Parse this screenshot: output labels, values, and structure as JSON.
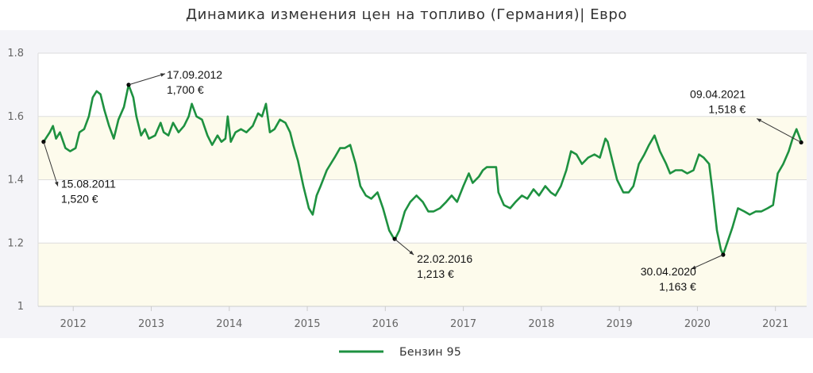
{
  "chart_data": {
    "type": "line",
    "title": "Динамика изменения цен на топливо (Германия)| Евро",
    "xlabel": "",
    "ylabel": "",
    "ylim": [
      1.0,
      1.8
    ],
    "yticks": [
      "1",
      "1.2",
      "1.4",
      "1.6",
      "1.8"
    ],
    "xlim": [
      2011.55,
      2021.4
    ],
    "xtick_labels": [
      "2012",
      "2013",
      "2014",
      "2015",
      "2016",
      "2017",
      "2018",
      "2019",
      "2020",
      "2021"
    ],
    "colors": {
      "line": "#1e9140",
      "band": "#fdfbec",
      "grid": "#dddddd",
      "page_bg": "#f4f4f8"
    },
    "series": [
      {
        "name": "Бензин 95",
        "color": "#1e9140",
        "points": [
          [
            2011.62,
            1.52
          ],
          [
            2011.7,
            1.55
          ],
          [
            2011.74,
            1.57
          ],
          [
            2011.78,
            1.53
          ],
          [
            2011.83,
            1.55
          ],
          [
            2011.9,
            1.5
          ],
          [
            2011.96,
            1.49
          ],
          [
            2012.03,
            1.5
          ],
          [
            2012.08,
            1.55
          ],
          [
            2012.14,
            1.56
          ],
          [
            2012.2,
            1.6
          ],
          [
            2012.25,
            1.66
          ],
          [
            2012.3,
            1.68
          ],
          [
            2012.35,
            1.67
          ],
          [
            2012.4,
            1.62
          ],
          [
            2012.46,
            1.57
          ],
          [
            2012.52,
            1.53
          ],
          [
            2012.58,
            1.59
          ],
          [
            2012.65,
            1.63
          ],
          [
            2012.71,
            1.7
          ],
          [
            2012.77,
            1.66
          ],
          [
            2012.81,
            1.6
          ],
          [
            2012.87,
            1.54
          ],
          [
            2012.92,
            1.56
          ],
          [
            2012.97,
            1.53
          ],
          [
            2013.05,
            1.54
          ],
          [
            2013.12,
            1.58
          ],
          [
            2013.16,
            1.55
          ],
          [
            2013.22,
            1.54
          ],
          [
            2013.28,
            1.58
          ],
          [
            2013.35,
            1.55
          ],
          [
            2013.42,
            1.57
          ],
          [
            2013.48,
            1.6
          ],
          [
            2013.52,
            1.64
          ],
          [
            2013.58,
            1.6
          ],
          [
            2013.65,
            1.59
          ],
          [
            2013.72,
            1.54
          ],
          [
            2013.78,
            1.51
          ],
          [
            2013.85,
            1.54
          ],
          [
            2013.9,
            1.52
          ],
          [
            2013.95,
            1.53
          ],
          [
            2013.98,
            1.6
          ],
          [
            2014.02,
            1.52
          ],
          [
            2014.08,
            1.55
          ],
          [
            2014.15,
            1.56
          ],
          [
            2014.22,
            1.55
          ],
          [
            2014.3,
            1.57
          ],
          [
            2014.37,
            1.61
          ],
          [
            2014.42,
            1.6
          ],
          [
            2014.47,
            1.64
          ],
          [
            2014.52,
            1.55
          ],
          [
            2014.58,
            1.56
          ],
          [
            2014.65,
            1.59
          ],
          [
            2014.72,
            1.58
          ],
          [
            2014.78,
            1.55
          ],
          [
            2014.82,
            1.51
          ],
          [
            2014.88,
            1.46
          ],
          [
            2014.95,
            1.38
          ],
          [
            2015.02,
            1.31
          ],
          [
            2015.07,
            1.29
          ],
          [
            2015.12,
            1.35
          ],
          [
            2015.17,
            1.38
          ],
          [
            2015.25,
            1.43
          ],
          [
            2015.35,
            1.47
          ],
          [
            2015.42,
            1.5
          ],
          [
            2015.48,
            1.5
          ],
          [
            2015.55,
            1.51
          ],
          [
            2015.62,
            1.45
          ],
          [
            2015.68,
            1.38
          ],
          [
            2015.75,
            1.35
          ],
          [
            2015.82,
            1.34
          ],
          [
            2015.9,
            1.36
          ],
          [
            2015.97,
            1.31
          ],
          [
            2016.05,
            1.24
          ],
          [
            2016.12,
            1.21
          ],
          [
            2016.18,
            1.24
          ],
          [
            2016.25,
            1.3
          ],
          [
            2016.32,
            1.33
          ],
          [
            2016.4,
            1.35
          ],
          [
            2016.48,
            1.33
          ],
          [
            2016.55,
            1.3
          ],
          [
            2016.62,
            1.3
          ],
          [
            2016.7,
            1.31
          ],
          [
            2016.78,
            1.33
          ],
          [
            2016.85,
            1.35
          ],
          [
            2016.92,
            1.33
          ],
          [
            2017.0,
            1.38
          ],
          [
            2017.07,
            1.42
          ],
          [
            2017.12,
            1.39
          ],
          [
            2017.2,
            1.41
          ],
          [
            2017.25,
            1.43
          ],
          [
            2017.3,
            1.44
          ],
          [
            2017.42,
            1.44
          ],
          [
            2017.45,
            1.36
          ],
          [
            2017.52,
            1.32
          ],
          [
            2017.6,
            1.31
          ],
          [
            2017.67,
            1.33
          ],
          [
            2017.75,
            1.35
          ],
          [
            2017.82,
            1.34
          ],
          [
            2017.9,
            1.37
          ],
          [
            2017.97,
            1.35
          ],
          [
            2018.05,
            1.38
          ],
          [
            2018.12,
            1.36
          ],
          [
            2018.18,
            1.35
          ],
          [
            2018.25,
            1.38
          ],
          [
            2018.32,
            1.43
          ],
          [
            2018.38,
            1.49
          ],
          [
            2018.45,
            1.48
          ],
          [
            2018.52,
            1.45
          ],
          [
            2018.6,
            1.47
          ],
          [
            2018.68,
            1.48
          ],
          [
            2018.75,
            1.47
          ],
          [
            2018.82,
            1.53
          ],
          [
            2018.85,
            1.52
          ],
          [
            2018.9,
            1.47
          ],
          [
            2018.97,
            1.4
          ],
          [
            2019.05,
            1.36
          ],
          [
            2019.12,
            1.36
          ],
          [
            2019.18,
            1.38
          ],
          [
            2019.25,
            1.45
          ],
          [
            2019.32,
            1.48
          ],
          [
            2019.38,
            1.51
          ],
          [
            2019.45,
            1.54
          ],
          [
            2019.52,
            1.49
          ],
          [
            2019.6,
            1.45
          ],
          [
            2019.65,
            1.42
          ],
          [
            2019.72,
            1.43
          ],
          [
            2019.8,
            1.43
          ],
          [
            2019.87,
            1.42
          ],
          [
            2019.95,
            1.43
          ],
          [
            2020.02,
            1.48
          ],
          [
            2020.08,
            1.47
          ],
          [
            2020.15,
            1.45
          ],
          [
            2020.2,
            1.35
          ],
          [
            2020.25,
            1.24
          ],
          [
            2020.3,
            1.18
          ],
          [
            2020.33,
            1.163
          ],
          [
            2020.38,
            1.2
          ],
          [
            2020.45,
            1.25
          ],
          [
            2020.52,
            1.31
          ],
          [
            2020.6,
            1.3
          ],
          [
            2020.67,
            1.29
          ],
          [
            2020.75,
            1.3
          ],
          [
            2020.82,
            1.3
          ],
          [
            2020.9,
            1.31
          ],
          [
            2020.97,
            1.32
          ],
          [
            2021.03,
            1.42
          ],
          [
            2021.1,
            1.45
          ],
          [
            2021.17,
            1.49
          ],
          [
            2021.22,
            1.53
          ],
          [
            2021.27,
            1.56
          ],
          [
            2021.3,
            1.54
          ],
          [
            2021.33,
            1.52
          ]
        ]
      }
    ],
    "annotations": [
      {
        "date": "15.08.2011",
        "value": "1,520 €",
        "x": 2011.62,
        "y": 1.52
      },
      {
        "date": "17.09.2012",
        "value": "1,700 €",
        "x": 2012.71,
        "y": 1.7
      },
      {
        "date": "22.02.2016",
        "value": "1,213 €",
        "x": 2016.12,
        "y": 1.213
      },
      {
        "date": "30.04.2020",
        "value": "1,163 €",
        "x": 2020.33,
        "y": 1.163
      },
      {
        "date": "09.04.2021",
        "value": "1,518 €",
        "x": 2021.33,
        "y": 1.518
      }
    ],
    "legend_position": "bottom-center",
    "grid": true
  }
}
